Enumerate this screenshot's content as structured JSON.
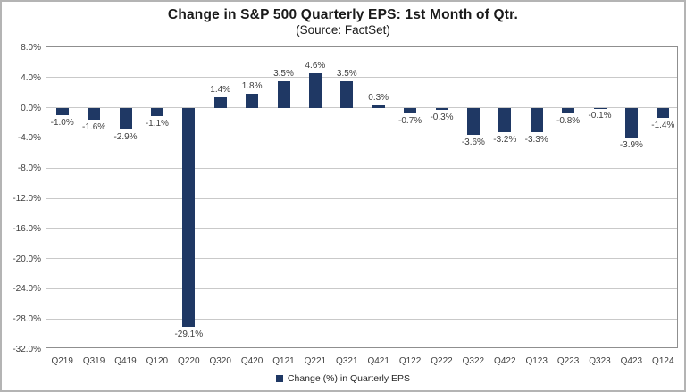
{
  "page": {
    "title": "Change in S&P 500 Quarterly EPS: 1st Month of Qtr.",
    "subtitle": "(Source: FactSet)"
  },
  "legend": {
    "label": "Change (%) in Quarterly EPS"
  },
  "colors": {
    "bar": "#1f3864",
    "grid": "#c9c9c9",
    "plot_border": "#8f8f8f",
    "tick_text": "#3f3f3f",
    "title_text": "#1a1a1a",
    "outer_border": "#b4b4b4"
  },
  "chart_data": {
    "type": "bar",
    "title": "Change in S&P 500 Quarterly EPS: 1st Month of Qtr.",
    "subtitle": "(Source: FactSet)",
    "categories": [
      "Q219",
      "Q319",
      "Q419",
      "Q120",
      "Q220",
      "Q320",
      "Q420",
      "Q121",
      "Q221",
      "Q321",
      "Q421",
      "Q122",
      "Q222",
      "Q322",
      "Q422",
      "Q123",
      "Q223",
      "Q323",
      "Q423",
      "Q124"
    ],
    "values": [
      -1.0,
      -1.6,
      -2.9,
      -1.1,
      -29.1,
      1.4,
      1.8,
      3.5,
      4.6,
      3.5,
      0.3,
      -0.7,
      -0.3,
      -3.6,
      -3.2,
      -3.3,
      -0.8,
      -0.1,
      -3.9,
      -1.4
    ],
    "value_labels": [
      "-1.0%",
      "-1.6%",
      "-2.9%",
      "-1.1%",
      "-29.1%",
      "1.4%",
      "1.8%",
      "3.5%",
      "4.6%",
      "3.5%",
      "0.3%",
      "-0.7%",
      "-0.3%",
      "-3.6%",
      "-3.2%",
      "-3.3%",
      "-0.8%",
      "-0.1%",
      "-3.9%",
      "-1.4%"
    ],
    "xlabel": "",
    "ylabel": "",
    "ylim": [
      -32,
      8
    ],
    "yticks": [
      8,
      4,
      0,
      -4,
      -8,
      -12,
      -16,
      -20,
      -24,
      -28,
      -32
    ],
    "ytick_labels": [
      "8.0%",
      "4.0%",
      "0.0%",
      "-4.0%",
      "-8.0%",
      "-12.0%",
      "-16.0%",
      "-20.0%",
      "-24.0%",
      "-28.0%",
      "-32.0%"
    ],
    "grid": true,
    "legend": [
      "Change (%) in Quarterly EPS"
    ],
    "legend_position": "bottom"
  }
}
